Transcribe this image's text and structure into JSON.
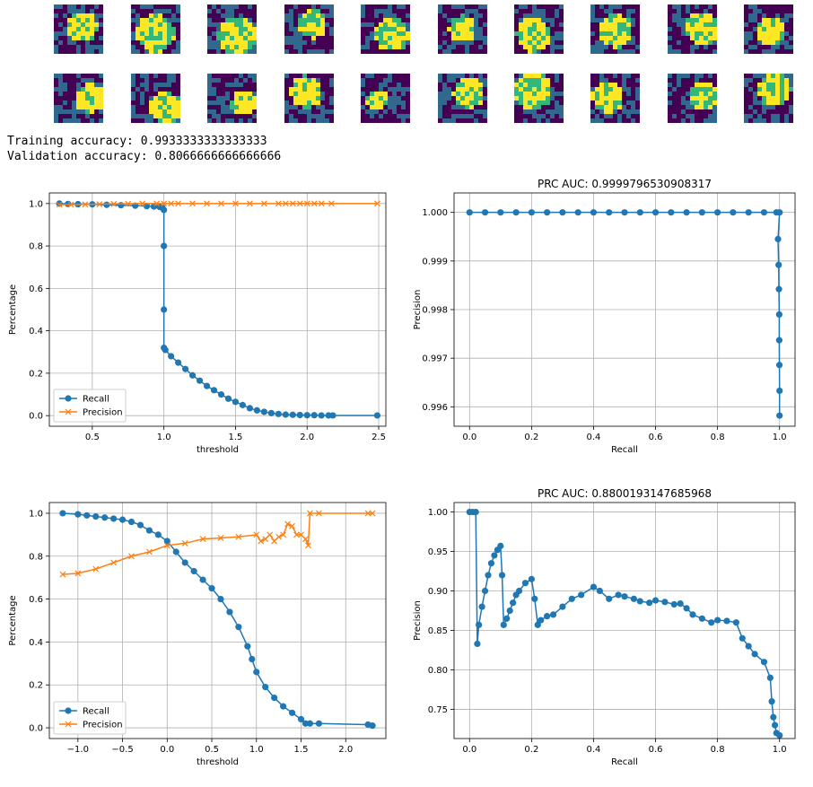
{
  "thumbnails": {
    "rows": 2,
    "cols": 10,
    "colormap": [
      "#440154",
      "#31688e",
      "#35b779",
      "#fde725"
    ]
  },
  "console": {
    "lines": [
      "Training accuracy: 0.9933333333333333",
      "Validation accuracy: 0.8066666666666666"
    ]
  },
  "colors": {
    "recall": "#1f77b4",
    "precision": "#ff7f0e",
    "grid": "#b0b0b0"
  },
  "chart_data": [
    {
      "type": "line",
      "title": "",
      "xlabel": "threshold",
      "ylabel": "Percentage",
      "xlim": [
        0.2,
        2.55
      ],
      "ylim": [
        -0.05,
        1.05
      ],
      "xticks": [
        0.5,
        1.0,
        1.5,
        2.0,
        2.5
      ],
      "xtick_labels": [
        "0.5",
        "1.0",
        "1.5",
        "2.0",
        "2.5"
      ],
      "yticks": [
        0.0,
        0.2,
        0.4,
        0.6,
        0.8,
        1.0
      ],
      "ytick_labels": [
        "0.0",
        "0.2",
        "0.4",
        "0.6",
        "0.8",
        "1.0"
      ],
      "grid": true,
      "legend": "lower-left",
      "series": [
        {
          "name": "Recall",
          "marker": "circle",
          "x": [
            0.27,
            0.33,
            0.4,
            0.5,
            0.6,
            0.7,
            0.8,
            0.88,
            0.93,
            0.97,
            0.99,
            1.0,
            1.0,
            1.0,
            1.0,
            1.01,
            1.05,
            1.1,
            1.15,
            1.2,
            1.25,
            1.3,
            1.35,
            1.4,
            1.45,
            1.5,
            1.55,
            1.6,
            1.65,
            1.7,
            1.75,
            1.8,
            1.85,
            1.9,
            1.95,
            2.0,
            2.05,
            2.1,
            2.15,
            2.18,
            2.49
          ],
          "y": [
            1.0,
            0.998,
            0.997,
            0.996,
            0.994,
            0.992,
            0.99,
            0.988,
            0.986,
            0.984,
            0.98,
            0.97,
            0.8,
            0.5,
            0.32,
            0.31,
            0.28,
            0.25,
            0.22,
            0.19,
            0.165,
            0.14,
            0.12,
            0.1,
            0.08,
            0.065,
            0.05,
            0.035,
            0.025,
            0.018,
            0.012,
            0.008,
            0.005,
            0.004,
            0.003,
            0.002,
            0.002,
            0.001,
            0.001,
            0.001,
            0.001
          ]
        },
        {
          "name": "Precision",
          "marker": "x",
          "x": [
            0.27,
            0.35,
            0.45,
            0.55,
            0.65,
            0.75,
            0.85,
            0.95,
            1.0,
            1.05,
            1.1,
            1.2,
            1.3,
            1.4,
            1.5,
            1.6,
            1.7,
            1.8,
            1.85,
            1.9,
            1.95,
            2.0,
            2.05,
            2.1,
            2.17,
            2.49
          ],
          "y": [
            0.995,
            0.995,
            0.996,
            0.997,
            0.998,
            0.999,
            1.0,
            1.0,
            1.0,
            1.0,
            1.0,
            1.0,
            1.0,
            1.0,
            1.0,
            1.0,
            1.0,
            1.0,
            1.0,
            1.0,
            1.0,
            1.0,
            1.0,
            1.0,
            1.0,
            1.0
          ]
        }
      ]
    },
    {
      "type": "line",
      "title": "PRC  AUC: 0.9999796530908317",
      "xlabel": "Recall",
      "ylabel": "Precision",
      "xlim": [
        -0.05,
        1.05
      ],
      "ylim": [
        0.9956,
        1.0004
      ],
      "xticks": [
        0.0,
        0.2,
        0.4,
        0.6,
        0.8,
        1.0
      ],
      "xtick_labels": [
        "0.0",
        "0.2",
        "0.4",
        "0.6",
        "0.8",
        "1.0"
      ],
      "yticks": [
        0.996,
        0.997,
        0.998,
        0.999,
        1.0
      ],
      "ytick_labels": [
        "0.996",
        "0.997",
        "0.998",
        "0.999",
        "1.000"
      ],
      "grid": true,
      "legend": "none",
      "series": [
        {
          "name": "",
          "marker": "circle",
          "x": [
            0.0,
            0.05,
            0.1,
            0.15,
            0.2,
            0.25,
            0.3,
            0.35,
            0.4,
            0.45,
            0.5,
            0.55,
            0.6,
            0.65,
            0.7,
            0.75,
            0.8,
            0.85,
            0.9,
            0.95,
            0.99,
            1.0,
            0.995,
            0.997,
            0.998,
            0.999,
            0.999,
            0.9995,
            1.0,
            1.0
          ],
          "y": [
            1.0,
            1.0,
            1.0,
            1.0,
            1.0,
            1.0,
            1.0,
            1.0,
            1.0,
            1.0,
            1.0,
            1.0,
            1.0,
            1.0,
            1.0,
            1.0,
            1.0,
            1.0,
            1.0,
            1.0,
            1.0,
            1.0,
            0.99945,
            0.99892,
            0.99842,
            0.9979,
            0.99737,
            0.99686,
            0.99633,
            0.99582
          ]
        }
      ]
    },
    {
      "type": "line",
      "title": "",
      "xlabel": "threshold",
      "ylabel": "Percentage",
      "xlim": [
        -1.32,
        2.45
      ],
      "ylim": [
        -0.05,
        1.05
      ],
      "xticks": [
        -1.0,
        -0.5,
        0.0,
        0.5,
        1.0,
        1.5,
        2.0
      ],
      "xtick_labels": [
        "−1.0",
        "−0.5",
        "0.0",
        "0.5",
        "1.0",
        "1.5",
        "2.0"
      ],
      "yticks": [
        0.0,
        0.2,
        0.4,
        0.6,
        0.8,
        1.0
      ],
      "ytick_labels": [
        "0.0",
        "0.2",
        "0.4",
        "0.6",
        "0.8",
        "1.0"
      ],
      "grid": true,
      "legend": "lower-left",
      "series": [
        {
          "name": "Recall",
          "marker": "circle",
          "x": [
            -1.17,
            -1.0,
            -0.9,
            -0.8,
            -0.7,
            -0.6,
            -0.5,
            -0.4,
            -0.3,
            -0.2,
            -0.1,
            0.0,
            0.1,
            0.2,
            0.3,
            0.4,
            0.5,
            0.6,
            0.7,
            0.8,
            0.9,
            0.95,
            1.0,
            1.1,
            1.2,
            1.3,
            1.4,
            1.5,
            1.55,
            1.6,
            1.7,
            2.25,
            2.3
          ],
          "y": [
            1.0,
            0.995,
            0.99,
            0.985,
            0.98,
            0.975,
            0.97,
            0.96,
            0.945,
            0.92,
            0.9,
            0.87,
            0.82,
            0.77,
            0.73,
            0.69,
            0.65,
            0.6,
            0.54,
            0.47,
            0.38,
            0.32,
            0.26,
            0.19,
            0.14,
            0.1,
            0.07,
            0.04,
            0.02,
            0.02,
            0.02,
            0.015,
            0.01
          ]
        },
        {
          "name": "Precision",
          "marker": "x",
          "x": [
            -1.17,
            -1.0,
            -0.8,
            -0.6,
            -0.4,
            -0.2,
            0.0,
            0.2,
            0.4,
            0.6,
            0.8,
            1.0,
            1.05,
            1.1,
            1.15,
            1.2,
            1.25,
            1.3,
            1.35,
            1.4,
            1.45,
            1.5,
            1.55,
            1.58,
            1.6,
            1.7,
            2.25,
            2.3
          ],
          "y": [
            0.715,
            0.72,
            0.74,
            0.77,
            0.8,
            0.82,
            0.85,
            0.86,
            0.88,
            0.885,
            0.89,
            0.9,
            0.87,
            0.88,
            0.9,
            0.87,
            0.89,
            0.9,
            0.95,
            0.94,
            0.9,
            0.9,
            0.88,
            0.85,
            1.0,
            1.0,
            1.0,
            1.0
          ]
        }
      ]
    },
    {
      "type": "line",
      "title": "PRC  AUC: 0.8800193147685968",
      "xlabel": "Recall",
      "ylabel": "Precision",
      "xlim": [
        -0.05,
        1.05
      ],
      "ylim": [
        0.713,
        1.012
      ],
      "xticks": [
        0.0,
        0.2,
        0.4,
        0.6,
        0.8,
        1.0
      ],
      "xtick_labels": [
        "0.0",
        "0.2",
        "0.4",
        "0.6",
        "0.8",
        "1.0"
      ],
      "yticks": [
        0.75,
        0.8,
        0.85,
        0.9,
        0.95,
        1.0
      ],
      "ytick_labels": [
        "0.75",
        "0.80",
        "0.85",
        "0.90",
        "0.95",
        "1.00"
      ],
      "grid": true,
      "legend": "none",
      "series": [
        {
          "name": "",
          "marker": "circle",
          "x": [
            0.0,
            0.01,
            0.02,
            0.025,
            0.03,
            0.04,
            0.05,
            0.06,
            0.07,
            0.08,
            0.09,
            0.1,
            0.105,
            0.11,
            0.12,
            0.13,
            0.14,
            0.15,
            0.16,
            0.18,
            0.2,
            0.21,
            0.22,
            0.23,
            0.25,
            0.27,
            0.3,
            0.33,
            0.36,
            0.4,
            0.42,
            0.45,
            0.48,
            0.5,
            0.53,
            0.55,
            0.58,
            0.6,
            0.63,
            0.66,
            0.68,
            0.7,
            0.72,
            0.75,
            0.78,
            0.8,
            0.83,
            0.86,
            0.88,
            0.9,
            0.92,
            0.95,
            0.97,
            0.975,
            0.98,
            0.985,
            0.99,
            1.0
          ],
          "y": [
            1.0,
            1.0,
            1.0,
            0.833,
            0.857,
            0.88,
            0.9,
            0.92,
            0.935,
            0.945,
            0.952,
            0.957,
            0.92,
            0.857,
            0.865,
            0.875,
            0.885,
            0.895,
            0.9,
            0.91,
            0.915,
            0.89,
            0.857,
            0.863,
            0.868,
            0.87,
            0.88,
            0.89,
            0.895,
            0.905,
            0.9,
            0.89,
            0.895,
            0.893,
            0.89,
            0.887,
            0.885,
            0.888,
            0.886,
            0.883,
            0.884,
            0.878,
            0.87,
            0.865,
            0.86,
            0.863,
            0.862,
            0.86,
            0.84,
            0.83,
            0.82,
            0.81,
            0.79,
            0.76,
            0.74,
            0.73,
            0.72,
            0.717
          ]
        }
      ]
    }
  ]
}
